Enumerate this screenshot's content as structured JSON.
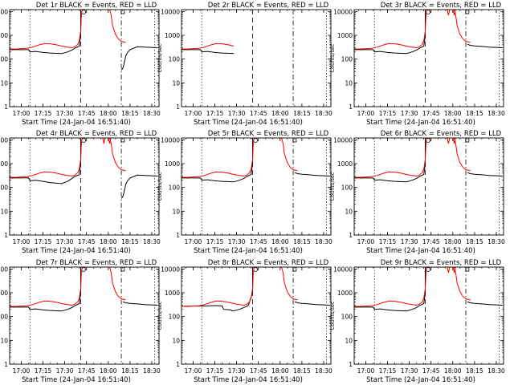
{
  "xlabel": "Start Time (24-Jan-04 16:51:40)",
  "ylabel": "Counts/sec",
  "colors": {
    "events": "#000000",
    "lld": "#ff0000",
    "background": "#ffffff"
  },
  "chart_data": {
    "type": "line",
    "panels": [
      {
        "title": "Det 1r BLACK = Events, RED = LLD",
        "full": true,
        "tail": "up",
        "ex": "E1",
        "ex_start": "16:59",
        "ex_end": "18:15",
        "lld_lim": "18:13",
        "spikes": false
      },
      {
        "title": "Det 2r BLACK = Events, RED = LLD",
        "full": false,
        "tail": "none",
        "ex": "E1",
        "ex_start": "16:59",
        "ex_end": "17:28",
        "lld_lim": "17:30",
        "spikes": false
      },
      {
        "title": "Det 3r BLACK = Events, RED = LLD",
        "full": true,
        "tail": "flat",
        "ex": "E1",
        "ex_start": "16:59",
        "ex_end": "18:15",
        "lld_lim": "18:13",
        "spikes": true
      },
      {
        "title": "Det 4r BLACK = Events, RED = LLD",
        "full": true,
        "tail": "up",
        "ex": "E2",
        "ex_start": "16:59",
        "ex_end": "18:15",
        "lld_lim": "18:13",
        "spikes": true
      },
      {
        "title": "Det 5r BLACK = Events, RED = LLD",
        "full": true,
        "tail": "flat",
        "ex": "E1",
        "ex_start": "16:59",
        "ex_end": "18:15",
        "lld_lim": "18:13",
        "spikes": false
      },
      {
        "title": "Det 6r BLACK = Events, RED = LLD",
        "full": true,
        "tail": "flat",
        "ex": "E1",
        "ex_start": "16:59",
        "ex_end": "18:15",
        "lld_lim": "18:13",
        "spikes": true
      },
      {
        "title": "Det 7r BLACK = Events, RED = LLD",
        "full": true,
        "tail": "flat",
        "ex": "E1",
        "ex_start": "16:59",
        "ex_end": "18:15",
        "lld_lim": "18:13",
        "spikes": false
      },
      {
        "title": "Det 8r BLACK = Events, RED = LLD",
        "full": true,
        "tail": "flat",
        "ex": "E3",
        "ex_start": "16:59",
        "ex_end": "18:15",
        "lld_lim": "18:13",
        "spikes": false
      },
      {
        "title": "Det 9r BLACK = Events, RED = LLD",
        "full": true,
        "tail": "flat",
        "ex": "E1",
        "ex_start": "16:59",
        "ex_end": "18:15",
        "lld_lim": "18:13",
        "spikes": true
      }
    ],
    "x_ticks": [
      "17:00",
      "17:15",
      "17:30",
      "17:45",
      "18:00",
      "18:15",
      "18:30"
    ],
    "y_ticks": [
      {
        "value": 1,
        "label": "1"
      },
      {
        "value": 10,
        "label": "10"
      },
      {
        "value": 100,
        "label": "100"
      },
      {
        "value": 1000,
        "label": "1000"
      },
      {
        "value": 10000,
        "label": "10000"
      }
    ],
    "xlim": [
      "16:52",
      "18:35"
    ],
    "ylim": [
      1,
      12000
    ],
    "yscale": "log",
    "vlines": [
      {
        "time": "17:06",
        "style": "dotted"
      },
      {
        "time": "17:41",
        "style": "dashed"
      },
      {
        "time": "18:09",
        "style": "dash-dot"
      },
      {
        "time": "18:32",
        "style": "dotted"
      }
    ],
    "lld_profile": [
      [
        "16:52",
        270
      ],
      [
        "16:56",
        265
      ],
      [
        "17:00",
        275
      ],
      [
        "17:04",
        285
      ],
      [
        "17:08",
        320
      ],
      [
        "17:12",
        390
      ],
      [
        "17:16",
        450
      ],
      [
        "17:20",
        440
      ],
      [
        "17:24",
        400
      ],
      [
        "17:28",
        350
      ],
      [
        "17:32",
        320
      ],
      [
        "17:35",
        300
      ],
      [
        "17:37",
        330
      ],
      [
        "17:39",
        420
      ],
      [
        "17:40",
        600
      ],
      [
        "17:41",
        1500
      ],
      [
        "17:41:30",
        7000
      ],
      [
        "17:42",
        12000
      ],
      [
        "17:59",
        12000
      ],
      [
        "18:01",
        12000
      ],
      [
        "18:02",
        7000
      ],
      [
        "18:03",
        2500
      ],
      [
        "18:05",
        1100
      ],
      [
        "18:07",
        700
      ],
      [
        "18:09",
        560
      ],
      [
        "18:12",
        500
      ],
      [
        "18:15",
        460
      ],
      [
        "18:20",
        420
      ],
      [
        "18:25",
        380
      ],
      [
        "18:30",
        360
      ],
      [
        "18:34",
        350
      ]
    ],
    "events_profiles": {
      "E1": [
        [
          "16:52",
          250
        ],
        [
          "17:00",
          250
        ],
        [
          "17:05",
          250
        ],
        [
          "17:06",
          200
        ],
        [
          "17:10",
          210
        ],
        [
          "17:15",
          190
        ],
        [
          "17:20",
          180
        ],
        [
          "17:25",
          175
        ],
        [
          "17:28",
          170
        ],
        [
          "17:32",
          200
        ],
        [
          "17:35",
          240
        ],
        [
          "17:37",
          290
        ],
        [
          "17:40",
          350
        ],
        [
          "17:41",
          1000
        ]
      ],
      "E2": [
        [
          "16:52",
          250
        ],
        [
          "17:00",
          250
        ],
        [
          "17:05",
          255
        ],
        [
          "17:06",
          190
        ],
        [
          "17:10",
          200
        ],
        [
          "17:15",
          180
        ],
        [
          "17:20",
          160
        ],
        [
          "17:25",
          150
        ],
        [
          "17:28",
          145
        ],
        [
          "17:32",
          180
        ],
        [
          "17:35",
          240
        ],
        [
          "17:37",
          290
        ],
        [
          "17:40",
          340
        ],
        [
          "17:41",
          1000
        ]
      ],
      "E3": [
        [
          "16:52",
          270
        ],
        [
          "17:00",
          275
        ],
        [
          "17:05",
          275
        ],
        [
          "17:10",
          280
        ],
        [
          "17:15",
          290
        ],
        [
          "17:20",
          280
        ],
        [
          "17:21",
          200
        ],
        [
          "17:26",
          190
        ],
        [
          "17:27",
          170
        ],
        [
          "17:32",
          200
        ],
        [
          "17:35",
          240
        ],
        [
          "17:38",
          290
        ],
        [
          "17:41",
          1000
        ]
      ]
    },
    "events_tail_up": [
      [
        "18:09",
        35
      ],
      [
        "18:10",
        40
      ],
      [
        "18:11",
        70
      ],
      [
        "18:12",
        130
      ],
      [
        "18:13",
        180
      ],
      [
        "18:15",
        250
      ],
      [
        "18:20",
        330
      ],
      [
        "18:25",
        320
      ],
      [
        "18:30",
        310
      ],
      [
        "18:34",
        300
      ]
    ],
    "events_tail_flat": [
      [
        "18:10",
        420
      ],
      [
        "18:12",
        380
      ],
      [
        "18:15",
        360
      ],
      [
        "18:20",
        340
      ],
      [
        "18:25",
        320
      ],
      [
        "18:30",
        310
      ],
      [
        "18:34",
        300
      ]
    ],
    "spike_times": [
      "17:57",
      "18:01"
    ]
  }
}
